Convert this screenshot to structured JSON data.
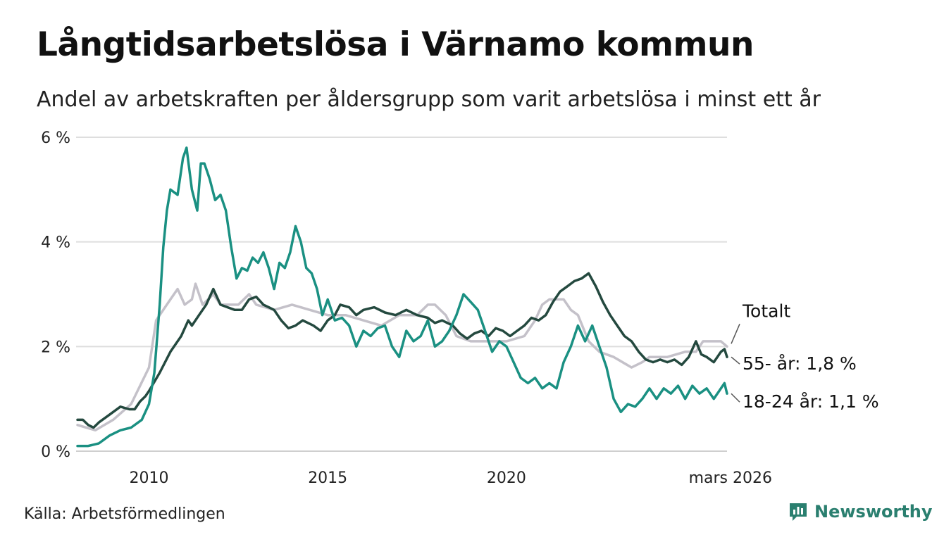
{
  "title": "Långtidsarbetslösa i Värnamo kommun",
  "subtitle": "Andel av arbetskraften per åldersgrupp som varit arbetslösa i minst ett år",
  "source": "Källa: Arbetsförmedlingen",
  "brand": {
    "name": "Newsworthy",
    "icon": "newsworthy-logo-icon",
    "color": "#2a7f6f"
  },
  "chart_data": {
    "type": "line",
    "ylim": [
      0,
      6
    ],
    "xlim": [
      2008.0,
      2026.17
    ],
    "y_ticks": [
      {
        "value": 0,
        "label": "0 %"
      },
      {
        "value": 2,
        "label": "2 %"
      },
      {
        "value": 4,
        "label": "4 %"
      },
      {
        "value": 6,
        "label": "6 %"
      }
    ],
    "x_ticks": [
      {
        "value": 2010,
        "label": "2010"
      },
      {
        "value": 2015,
        "label": "2015"
      },
      {
        "value": 2020,
        "label": "2020"
      },
      {
        "value": 2026.17,
        "label": "mars 2026"
      }
    ],
    "grid": true,
    "series": [
      {
        "name": "Totalt",
        "label": "Totalt",
        "color": "#c4c1c9",
        "points": [
          [
            2008.0,
            0.5
          ],
          [
            2008.5,
            0.4
          ],
          [
            2009.0,
            0.6
          ],
          [
            2009.5,
            0.9
          ],
          [
            2010.0,
            1.6
          ],
          [
            2010.2,
            2.5
          ],
          [
            2010.6,
            2.9
          ],
          [
            2010.8,
            3.1
          ],
          [
            2011.0,
            2.8
          ],
          [
            2011.2,
            2.9
          ],
          [
            2011.3,
            3.2
          ],
          [
            2011.5,
            2.8
          ],
          [
            2011.8,
            3.0
          ],
          [
            2012.0,
            2.8
          ],
          [
            2012.5,
            2.8
          ],
          [
            2012.8,
            3.0
          ],
          [
            2013.0,
            2.8
          ],
          [
            2013.5,
            2.7
          ],
          [
            2014.0,
            2.8
          ],
          [
            2014.5,
            2.7
          ],
          [
            2015.0,
            2.6
          ],
          [
            2015.5,
            2.6
          ],
          [
            2016.0,
            2.5
          ],
          [
            2016.5,
            2.4
          ],
          [
            2017.0,
            2.6
          ],
          [
            2017.5,
            2.6
          ],
          [
            2017.8,
            2.8
          ],
          [
            2018.0,
            2.8
          ],
          [
            2018.3,
            2.6
          ],
          [
            2018.6,
            2.2
          ],
          [
            2019.0,
            2.1
          ],
          [
            2019.5,
            2.1
          ],
          [
            2020.0,
            2.1
          ],
          [
            2020.5,
            2.2
          ],
          [
            2020.8,
            2.5
          ],
          [
            2021.0,
            2.8
          ],
          [
            2021.2,
            2.9
          ],
          [
            2021.6,
            2.9
          ],
          [
            2021.8,
            2.7
          ],
          [
            2022.0,
            2.6
          ],
          [
            2022.3,
            2.1
          ],
          [
            2022.6,
            1.9
          ],
          [
            2023.0,
            1.8
          ],
          [
            2023.5,
            1.6
          ],
          [
            2023.8,
            1.7
          ],
          [
            2024.0,
            1.8
          ],
          [
            2024.5,
            1.8
          ],
          [
            2025.0,
            1.9
          ],
          [
            2025.3,
            1.9
          ],
          [
            2025.5,
            2.1
          ],
          [
            2026.0,
            2.1
          ],
          [
            2026.17,
            2.0
          ]
        ]
      },
      {
        "name": "55- år",
        "label": "55- år: 1,8 %",
        "color": "#24493f",
        "points": [
          [
            2008.0,
            0.6
          ],
          [
            2008.15,
            0.6
          ],
          [
            2008.3,
            0.5
          ],
          [
            2008.45,
            0.45
          ],
          [
            2008.6,
            0.55
          ],
          [
            2008.8,
            0.65
          ],
          [
            2009.0,
            0.75
          ],
          [
            2009.2,
            0.85
          ],
          [
            2009.45,
            0.8
          ],
          [
            2009.6,
            0.8
          ],
          [
            2009.75,
            0.95
          ],
          [
            2009.9,
            1.05
          ],
          [
            2010.0,
            1.15
          ],
          [
            2010.3,
            1.5
          ],
          [
            2010.6,
            1.9
          ],
          [
            2010.9,
            2.2
          ],
          [
            2011.1,
            2.5
          ],
          [
            2011.2,
            2.4
          ],
          [
            2011.4,
            2.6
          ],
          [
            2011.6,
            2.8
          ],
          [
            2011.8,
            3.1
          ],
          [
            2012.0,
            2.8
          ],
          [
            2012.2,
            2.75
          ],
          [
            2012.4,
            2.7
          ],
          [
            2012.6,
            2.7
          ],
          [
            2012.8,
            2.9
          ],
          [
            2013.0,
            2.95
          ],
          [
            2013.2,
            2.8
          ],
          [
            2013.5,
            2.7
          ],
          [
            2013.7,
            2.5
          ],
          [
            2013.9,
            2.35
          ],
          [
            2014.1,
            2.4
          ],
          [
            2014.3,
            2.5
          ],
          [
            2014.6,
            2.4
          ],
          [
            2014.8,
            2.3
          ],
          [
            2015.0,
            2.5
          ],
          [
            2015.2,
            2.6
          ],
          [
            2015.35,
            2.8
          ],
          [
            2015.6,
            2.75
          ],
          [
            2015.8,
            2.6
          ],
          [
            2016.0,
            2.7
          ],
          [
            2016.3,
            2.75
          ],
          [
            2016.6,
            2.65
          ],
          [
            2016.9,
            2.6
          ],
          [
            2017.2,
            2.7
          ],
          [
            2017.5,
            2.6
          ],
          [
            2017.8,
            2.55
          ],
          [
            2018.0,
            2.45
          ],
          [
            2018.2,
            2.5
          ],
          [
            2018.5,
            2.4
          ],
          [
            2018.7,
            2.25
          ],
          [
            2018.9,
            2.15
          ],
          [
            2019.1,
            2.25
          ],
          [
            2019.3,
            2.3
          ],
          [
            2019.5,
            2.2
          ],
          [
            2019.7,
            2.35
          ],
          [
            2019.9,
            2.3
          ],
          [
            2020.1,
            2.2
          ],
          [
            2020.3,
            2.3
          ],
          [
            2020.5,
            2.4
          ],
          [
            2020.7,
            2.55
          ],
          [
            2020.9,
            2.5
          ],
          [
            2021.1,
            2.6
          ],
          [
            2021.3,
            2.85
          ],
          [
            2021.5,
            3.05
          ],
          [
            2021.7,
            3.15
          ],
          [
            2021.9,
            3.25
          ],
          [
            2022.1,
            3.3
          ],
          [
            2022.3,
            3.4
          ],
          [
            2022.5,
            3.15
          ],
          [
            2022.7,
            2.85
          ],
          [
            2022.9,
            2.6
          ],
          [
            2023.1,
            2.4
          ],
          [
            2023.3,
            2.2
          ],
          [
            2023.5,
            2.1
          ],
          [
            2023.7,
            1.9
          ],
          [
            2023.9,
            1.75
          ],
          [
            2024.1,
            1.7
          ],
          [
            2024.3,
            1.75
          ],
          [
            2024.5,
            1.7
          ],
          [
            2024.7,
            1.75
          ],
          [
            2024.9,
            1.65
          ],
          [
            2025.1,
            1.8
          ],
          [
            2025.3,
            2.1
          ],
          [
            2025.45,
            1.85
          ],
          [
            2025.6,
            1.8
          ],
          [
            2025.8,
            1.7
          ],
          [
            2026.0,
            1.9
          ],
          [
            2026.1,
            1.95
          ],
          [
            2026.17,
            1.8
          ]
        ]
      },
      {
        "name": "18-24 år",
        "label": "18-24 år: 1,1 %",
        "color": "#1a9082",
        "points": [
          [
            2008.0,
            0.1
          ],
          [
            2008.3,
            0.1
          ],
          [
            2008.6,
            0.15
          ],
          [
            2008.9,
            0.3
          ],
          [
            2009.2,
            0.4
          ],
          [
            2009.5,
            0.45
          ],
          [
            2009.8,
            0.6
          ],
          [
            2010.0,
            0.9
          ],
          [
            2010.15,
            1.5
          ],
          [
            2010.3,
            2.8
          ],
          [
            2010.4,
            3.9
          ],
          [
            2010.5,
            4.6
          ],
          [
            2010.6,
            5.0
          ],
          [
            2010.8,
            4.9
          ],
          [
            2010.95,
            5.6
          ],
          [
            2011.05,
            5.8
          ],
          [
            2011.2,
            5.0
          ],
          [
            2011.35,
            4.6
          ],
          [
            2011.45,
            5.5
          ],
          [
            2011.55,
            5.5
          ],
          [
            2011.7,
            5.2
          ],
          [
            2011.85,
            4.8
          ],
          [
            2012.0,
            4.9
          ],
          [
            2012.15,
            4.6
          ],
          [
            2012.3,
            3.9
          ],
          [
            2012.45,
            3.3
          ],
          [
            2012.6,
            3.5
          ],
          [
            2012.75,
            3.45
          ],
          [
            2012.9,
            3.7
          ],
          [
            2013.05,
            3.6
          ],
          [
            2013.2,
            3.8
          ],
          [
            2013.35,
            3.5
          ],
          [
            2013.5,
            3.1
          ],
          [
            2013.65,
            3.6
          ],
          [
            2013.8,
            3.5
          ],
          [
            2013.95,
            3.8
          ],
          [
            2014.1,
            4.3
          ],
          [
            2014.25,
            4.0
          ],
          [
            2014.4,
            3.5
          ],
          [
            2014.55,
            3.4
          ],
          [
            2014.7,
            3.1
          ],
          [
            2014.85,
            2.6
          ],
          [
            2015.0,
            2.9
          ],
          [
            2015.2,
            2.5
          ],
          [
            2015.4,
            2.55
          ],
          [
            2015.6,
            2.4
          ],
          [
            2015.8,
            2.0
          ],
          [
            2016.0,
            2.3
          ],
          [
            2016.2,
            2.2
          ],
          [
            2016.4,
            2.35
          ],
          [
            2016.6,
            2.4
          ],
          [
            2016.8,
            2.0
          ],
          [
            2017.0,
            1.8
          ],
          [
            2017.2,
            2.3
          ],
          [
            2017.4,
            2.1
          ],
          [
            2017.6,
            2.2
          ],
          [
            2017.8,
            2.5
          ],
          [
            2018.0,
            2.0
          ],
          [
            2018.2,
            2.1
          ],
          [
            2018.4,
            2.3
          ],
          [
            2018.6,
            2.6
          ],
          [
            2018.8,
            3.0
          ],
          [
            2019.0,
            2.85
          ],
          [
            2019.2,
            2.7
          ],
          [
            2019.4,
            2.3
          ],
          [
            2019.6,
            1.9
          ],
          [
            2019.8,
            2.1
          ],
          [
            2020.0,
            2.0
          ],
          [
            2020.2,
            1.7
          ],
          [
            2020.4,
            1.4
          ],
          [
            2020.6,
            1.3
          ],
          [
            2020.8,
            1.4
          ],
          [
            2021.0,
            1.2
          ],
          [
            2021.2,
            1.3
          ],
          [
            2021.4,
            1.2
          ],
          [
            2021.6,
            1.7
          ],
          [
            2021.8,
            2.0
          ],
          [
            2022.0,
            2.4
          ],
          [
            2022.2,
            2.1
          ],
          [
            2022.4,
            2.4
          ],
          [
            2022.6,
            2.0
          ],
          [
            2022.8,
            1.6
          ],
          [
            2023.0,
            1.0
          ],
          [
            2023.2,
            0.75
          ],
          [
            2023.4,
            0.9
          ],
          [
            2023.6,
            0.85
          ],
          [
            2023.8,
            1.0
          ],
          [
            2024.0,
            1.2
          ],
          [
            2024.2,
            1.0
          ],
          [
            2024.4,
            1.2
          ],
          [
            2024.6,
            1.1
          ],
          [
            2024.8,
            1.25
          ],
          [
            2025.0,
            1.0
          ],
          [
            2025.2,
            1.25
          ],
          [
            2025.4,
            1.1
          ],
          [
            2025.6,
            1.2
          ],
          [
            2025.8,
            1.0
          ],
          [
            2026.0,
            1.2
          ],
          [
            2026.1,
            1.3
          ],
          [
            2026.17,
            1.1
          ]
        ]
      }
    ]
  }
}
